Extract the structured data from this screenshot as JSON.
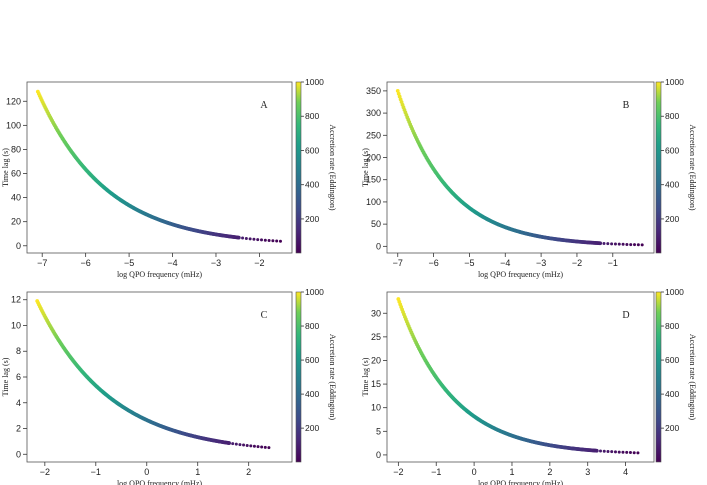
{
  "colorbar": {
    "label": "Accretion rate (Eddington)",
    "ticks": [
      200,
      400,
      600,
      800,
      1000
    ],
    "range": [
      1,
      1000
    ],
    "colormap": "viridis"
  },
  "chart_data": [
    {
      "type": "scatter",
      "panel_label": "A",
      "xlabel": "log QPO frequency (mHz)",
      "ylabel": "Time lag (s)",
      "xlim": [
        -7.35,
        -1.25
      ],
      "ylim": [
        -6,
        136
      ],
      "xticks": [
        -7,
        -6,
        -5,
        -4,
        -3,
        -2
      ],
      "yticks": [
        0,
        20,
        40,
        60,
        80,
        100,
        120
      ],
      "curve": {
        "x_min": -7.1,
        "x_max": -1.45,
        "y_max": 128,
        "y_min": 0.1,
        "tau": 0.68
      },
      "color_by": "Accretion rate (Eddington)"
    },
    {
      "type": "scatter",
      "panel_label": "B",
      "xlabel": "log QPO frequency (mHz)",
      "ylabel": "Time lag (s)",
      "xlim": [
        -7.3,
        0.15
      ],
      "ylim": [
        -15,
        370
      ],
      "xticks": [
        -7,
        -6,
        -5,
        -4,
        -3,
        -2,
        -1
      ],
      "yticks": [
        0,
        50,
        100,
        150,
        200,
        250,
        300,
        350
      ],
      "curve": {
        "x_min": -7.0,
        "x_max": -0.1,
        "y_max": 350,
        "y_min": 0.3,
        "tau": 0.62
      },
      "color_by": "Accretion rate (Eddington)"
    },
    {
      "type": "scatter",
      "panel_label": "C",
      "xlabel": "log QPO frequency (mHz)",
      "ylabel": "Time lag (s)",
      "xlim": [
        -2.35,
        2.85
      ],
      "ylim": [
        -0.6,
        12.6
      ],
      "xticks": [
        -2,
        -1,
        0,
        1,
        2
      ],
      "yticks": [
        0,
        2,
        4,
        6,
        8,
        10,
        12
      ],
      "curve": {
        "x_min": -2.15,
        "x_max": 2.45,
        "y_max": 11.9,
        "y_min": 0.02,
        "tau": 0.62
      },
      "color_by": "Accretion rate (Eddington)"
    },
    {
      "type": "scatter",
      "panel_label": "D",
      "xlabel": "log QPO frequency (mHz)",
      "ylabel": "Time lag (s)",
      "xlim": [
        -2.3,
        4.75
      ],
      "ylim": [
        -1.5,
        34.5
      ],
      "xticks": [
        -2,
        -1,
        0,
        1,
        2,
        3,
        4
      ],
      "yticks": [
        0,
        5,
        10,
        15,
        20,
        25,
        30
      ],
      "curve": {
        "x_min": -2.0,
        "x_max": 4.4,
        "y_max": 33,
        "y_min": 0.05,
        "tau": 0.62
      },
      "color_by": "Accretion rate (Eddington)"
    }
  ]
}
